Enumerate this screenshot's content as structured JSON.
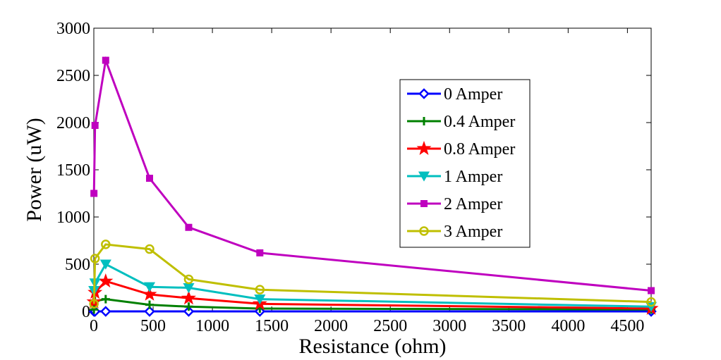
{
  "chart_data": {
    "type": "line",
    "title": "",
    "xlabel": "Resistance (ohm)",
    "ylabel": "Power (uW)",
    "xlim": [
      0,
      4700
    ],
    "ylim": [
      0,
      3000
    ],
    "x_ticks": [
      0,
      500,
      1000,
      1500,
      2000,
      2500,
      3000,
      3500,
      4000,
      4500
    ],
    "y_ticks": [
      0,
      500,
      1000,
      1500,
      2000,
      2500,
      3000
    ],
    "grid": false,
    "legend_position": "top-right",
    "x": [
      1,
      10,
      100,
      470,
      800,
      1400,
      4700
    ],
    "series": [
      {
        "name": "0 Amper",
        "color": "#0000ff",
        "marker": "diamond",
        "values": [
          0,
          0,
          0,
          0,
          0,
          0,
          0
        ]
      },
      {
        "name": "0.4 Amper",
        "color": "#008000",
        "marker": "plus",
        "values": [
          20,
          110,
          130,
          70,
          50,
          30,
          20
        ]
      },
      {
        "name": "0.8 Amper",
        "color": "#ff0000",
        "marker": "star",
        "values": [
          100,
          200,
          320,
          180,
          140,
          80,
          30
        ]
      },
      {
        "name": "1 Amper",
        "color": "#00bfbf",
        "marker": "triangle-down",
        "values": [
          220,
          300,
          500,
          260,
          250,
          130,
          50
        ]
      },
      {
        "name": "2 Amper",
        "color": "#bf00bf",
        "marker": "square",
        "values": [
          1250,
          1970,
          2660,
          1410,
          890,
          620,
          220
        ]
      },
      {
        "name": "3 Amper",
        "color": "#bfbf00",
        "marker": "circle",
        "values": [
          80,
          560,
          710,
          660,
          340,
          230,
          100
        ]
      }
    ]
  }
}
